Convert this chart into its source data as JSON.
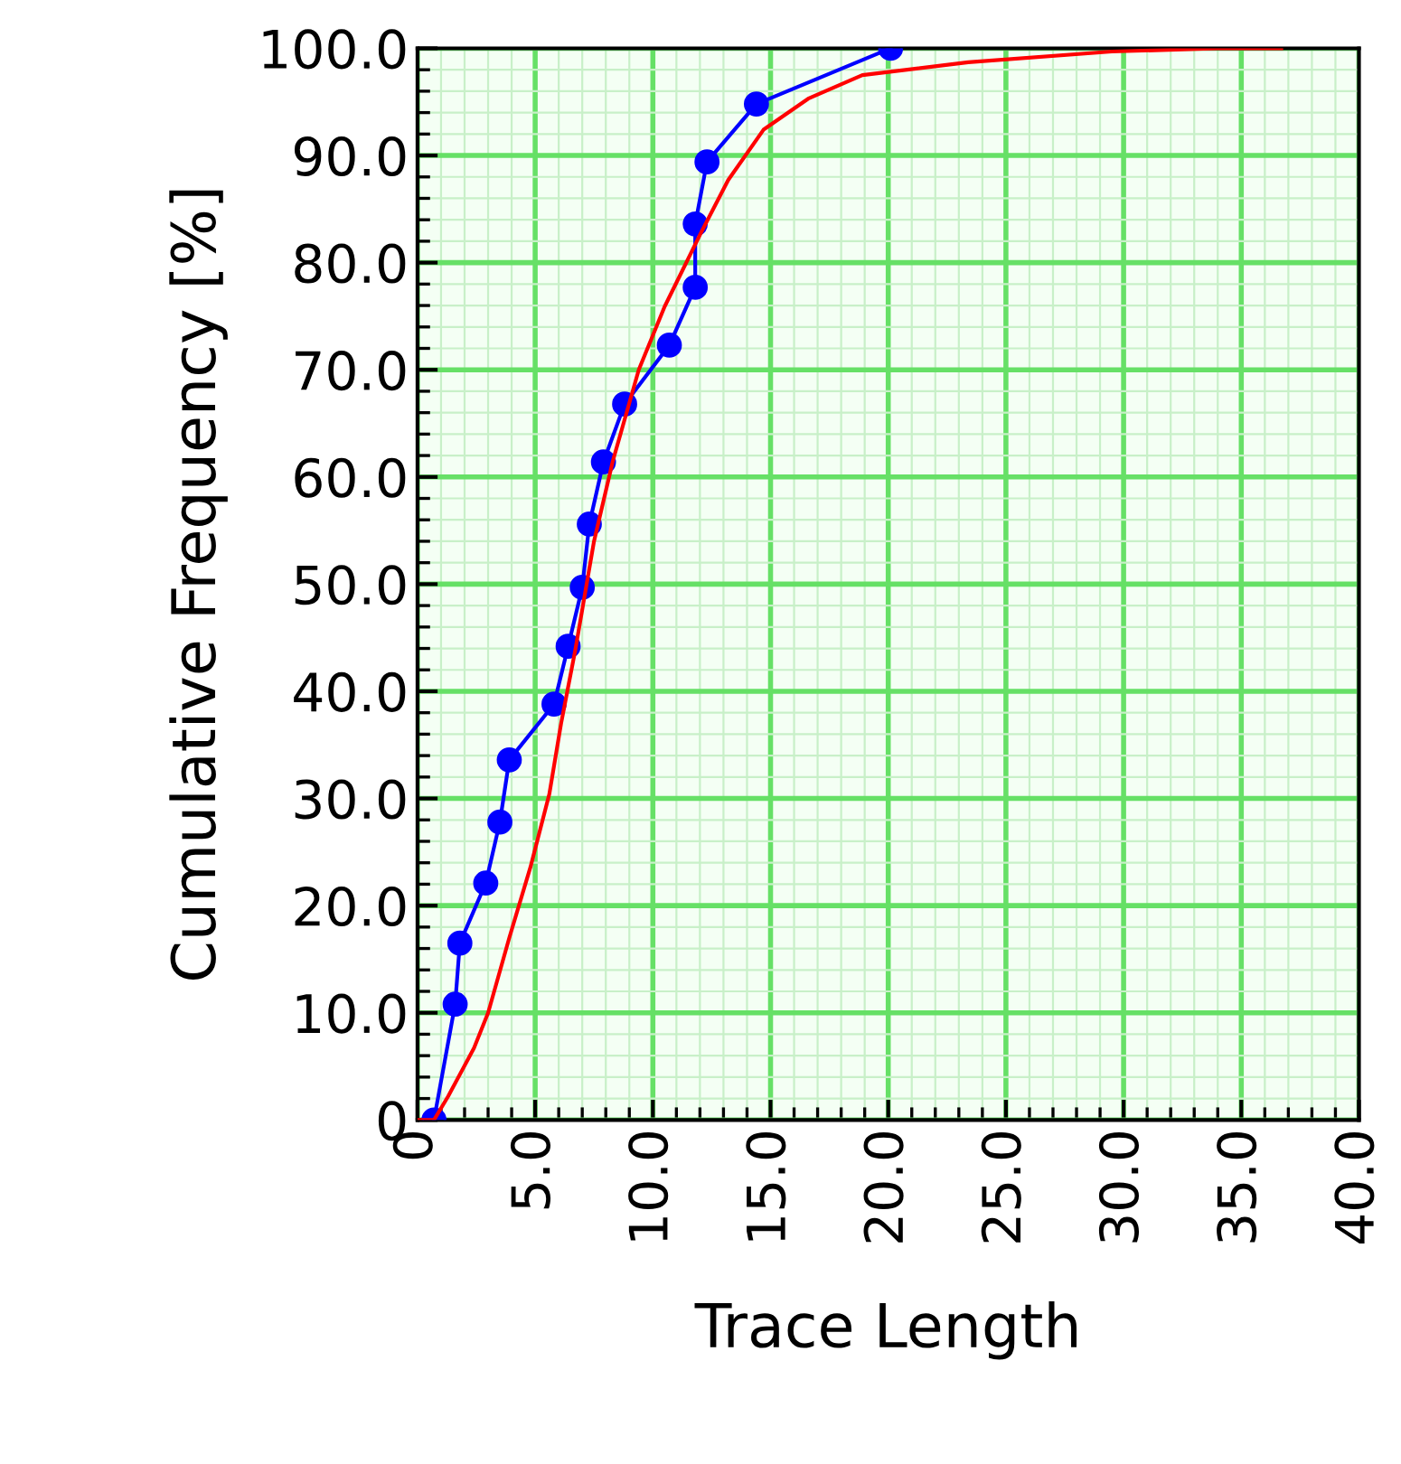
{
  "chart_data": {
    "type": "line",
    "xlabel": "Trace Length",
    "ylabel": "Cumulative Frequency [%]",
    "xlim": [
      0,
      40
    ],
    "ylim": [
      0,
      100
    ],
    "xticks": [
      {
        "value": 0,
        "label": "0"
      },
      {
        "value": 5,
        "label": "5.0"
      },
      {
        "value": 10,
        "label": "10.0"
      },
      {
        "value": 15,
        "label": "15.0"
      },
      {
        "value": 20,
        "label": "20.0"
      },
      {
        "value": 25,
        "label": "25.0"
      },
      {
        "value": 30,
        "label": "30.0"
      },
      {
        "value": 35,
        "label": "35.0"
      },
      {
        "value": 40,
        "label": "40.0"
      }
    ],
    "yticks": [
      {
        "value": 0,
        "label": "0"
      },
      {
        "value": 10,
        "label": "10.0"
      },
      {
        "value": 20,
        "label": "20.0"
      },
      {
        "value": 30,
        "label": "30.0"
      },
      {
        "value": 40,
        "label": "40.0"
      },
      {
        "value": 50,
        "label": "50.0"
      },
      {
        "value": 60,
        "label": "60.0"
      },
      {
        "value": 70,
        "label": "70.0"
      },
      {
        "value": 80,
        "label": "80.0"
      },
      {
        "value": 90,
        "label": "90.0"
      },
      {
        "value": 100,
        "label": "100.0"
      }
    ],
    "grid": true,
    "legend": false,
    "series": [
      {
        "color": "#0000ff",
        "marker": "circle",
        "x": [
          0.7,
          1.6,
          1.8,
          2.9,
          3.5,
          3.9,
          5.8,
          6.4,
          7.0,
          7.3,
          7.9,
          8.8,
          10.7,
          11.8,
          11.8,
          12.3,
          14.4,
          20.1
        ],
        "values": [
          0,
          10.8,
          16.5,
          22.1,
          27.8,
          33.6,
          38.8,
          44.2,
          49.7,
          55.6,
          61.4,
          66.8,
          72.3,
          77.7,
          83.6,
          89.4,
          94.8,
          100
        ]
      },
      {
        "color": "#ff0000",
        "marker": "none",
        "x": [
          0,
          0.7,
          1.3,
          2.4,
          3.0,
          3.9,
          4.8,
          5.6,
          6.1,
          6.7,
          7.5,
          8.3,
          9.4,
          10.5,
          12.0,
          13.2,
          14.7,
          16.6,
          18.9,
          23.4,
          29.5,
          34.0,
          36.7
        ],
        "values": [
          0,
          0,
          2.2,
          6.7,
          10,
          17,
          23.6,
          30.4,
          37,
          43.8,
          54,
          61.5,
          70,
          75.9,
          82.6,
          87.7,
          92.4,
          95.3,
          97.5,
          98.7,
          99.7,
          100,
          100
        ]
      }
    ]
  }
}
